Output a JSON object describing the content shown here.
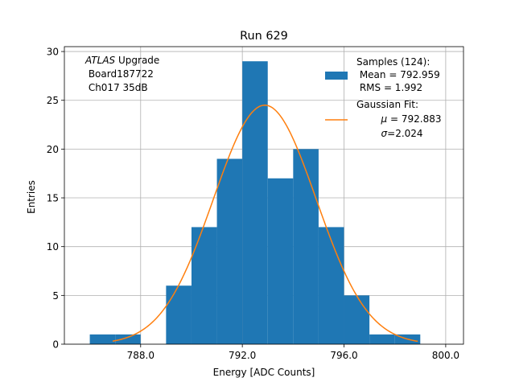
{
  "colors": {
    "bar": "#1f77b4",
    "fit": "#ff7f0e",
    "grid": "#b0b0b0",
    "axis": "#000000"
  },
  "chart_data": {
    "type": "bar",
    "title": "Run 629",
    "xlabel": "Energy [ADC Counts]",
    "ylabel": "Entries",
    "xlim": [
      785.0,
      800.7
    ],
    "ylim": [
      0,
      30.5
    ],
    "grid": true,
    "x_ticks": [
      788.0,
      792.0,
      796.0,
      800.0
    ],
    "x_tick_labels": [
      "788.0",
      "792.0",
      "796.0",
      "800.0"
    ],
    "y_ticks": [
      0,
      5,
      10,
      15,
      20,
      25,
      30
    ],
    "y_tick_labels": [
      "0",
      "5",
      "10",
      "15",
      "20",
      "25",
      "30"
    ],
    "bins": [
      {
        "x0": 786.0,
        "x1": 787.0,
        "count": 1
      },
      {
        "x0": 787.0,
        "x1": 788.0,
        "count": 1
      },
      {
        "x0": 788.0,
        "x1": 789.0,
        "count": 0
      },
      {
        "x0": 789.0,
        "x1": 790.0,
        "count": 6
      },
      {
        "x0": 790.0,
        "x1": 791.0,
        "count": 12
      },
      {
        "x0": 791.0,
        "x1": 792.0,
        "count": 19
      },
      {
        "x0": 792.0,
        "x1": 793.0,
        "count": 29
      },
      {
        "x0": 793.0,
        "x1": 794.0,
        "count": 17
      },
      {
        "x0": 794.0,
        "x1": 795.0,
        "count": 20
      },
      {
        "x0": 795.0,
        "x1": 796.0,
        "count": 12
      },
      {
        "x0": 796.0,
        "x1": 797.0,
        "count": 5
      },
      {
        "x0": 797.0,
        "x1": 798.0,
        "count": 1
      },
      {
        "x0": 798.0,
        "x1": 799.0,
        "count": 1
      }
    ],
    "fit": {
      "mu": 792.883,
      "sigma": 2.024,
      "amplitude": 24.5,
      "x_range": [
        786.9,
        798.9
      ]
    },
    "annotation": {
      "italic_part": "ATLAS",
      "rest_line1": " Upgrade",
      "line2": " Board187722",
      "line3": " Ch017 35dB"
    },
    "legend": {
      "placement": "top-right",
      "samples_line1": "Samples (124):",
      "samples_line2": " Mean = 792.959",
      "samples_line3": " RMS = 1.992",
      "fit_line1": "Gaussian Fit:",
      "fit_mu_symbol": "μ",
      "fit_mu_value": " = 792.883",
      "fit_sigma_symbol": "σ",
      "fit_sigma_value": "=2.024"
    }
  }
}
